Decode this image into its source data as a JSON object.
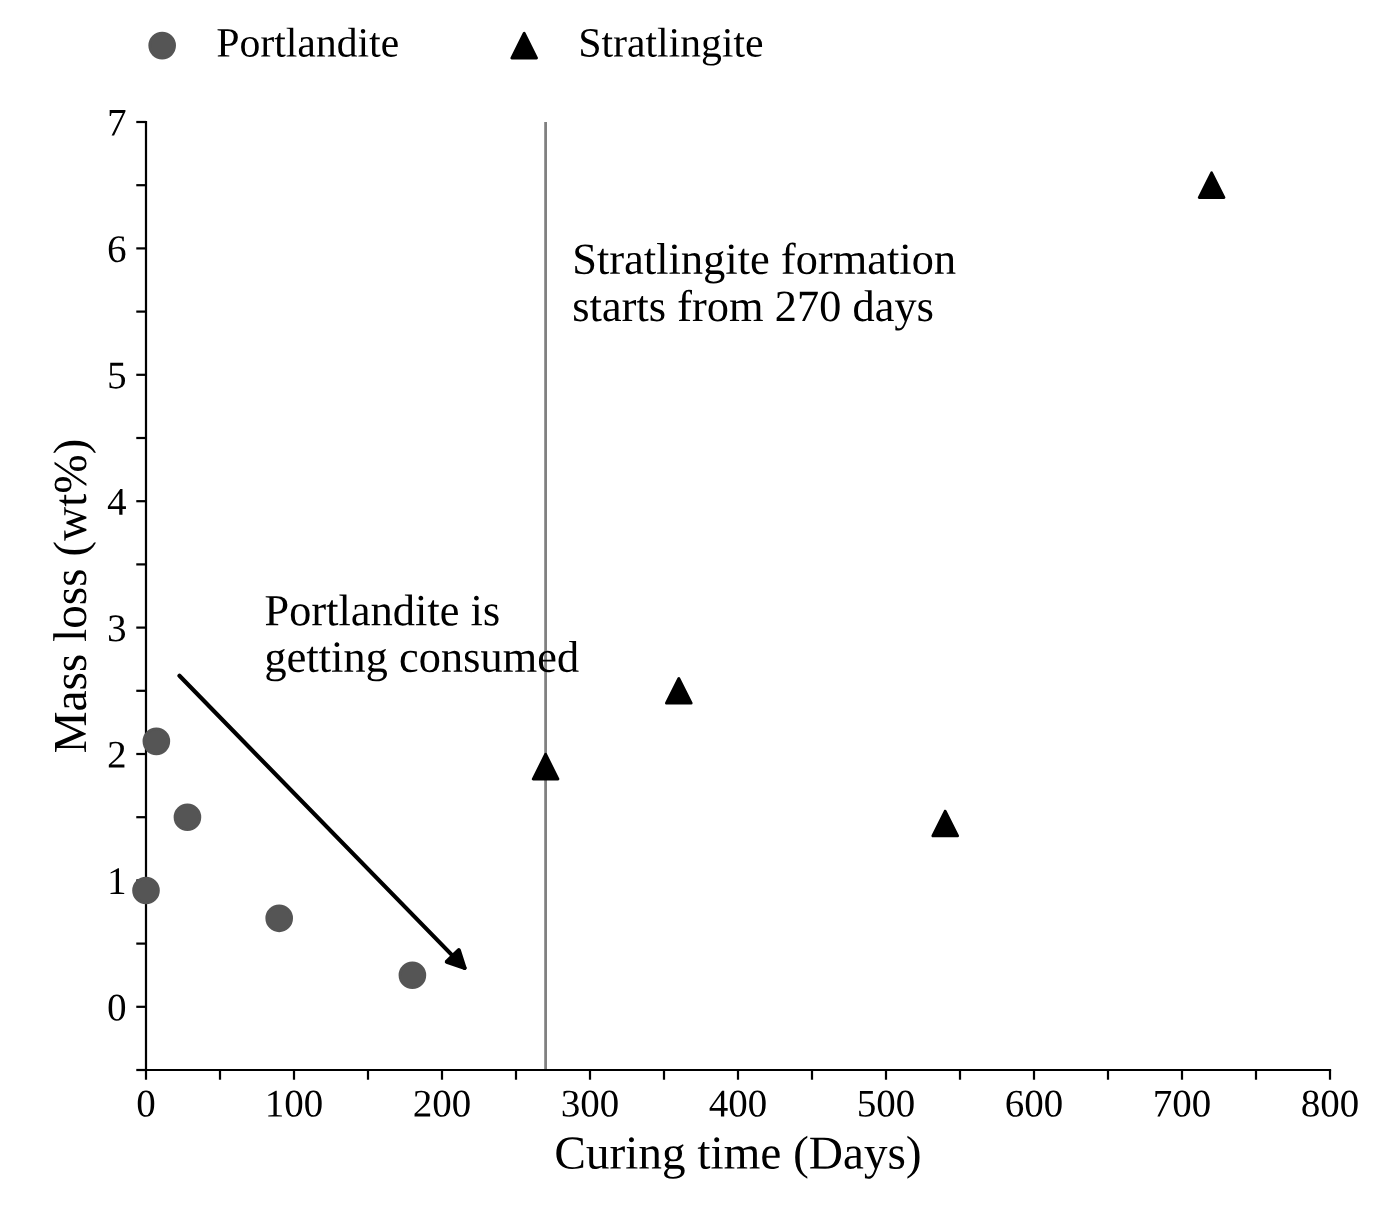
{
  "chart_data": {
    "type": "scatter",
    "xlabel": "Curing time (Days)",
    "ylabel": "Mass loss (wt%)",
    "series": [
      {
        "name": "Portlandite",
        "color": "#555555",
        "marker": "circle",
        "x": [
          0,
          7,
          28,
          90,
          180
        ],
        "values": [
          0.92,
          2.1,
          1.5,
          0.7,
          0.25
        ]
      },
      {
        "name": "Stratlingite",
        "color": "#000000",
        "marker": "triangle",
        "x": [
          270,
          360,
          540,
          720
        ],
        "values": [
          1.9,
          2.5,
          1.45,
          6.5
        ]
      }
    ],
    "xlim": [
      0,
      800
    ],
    "ylim": [
      -0.5,
      7
    ],
    "xticks": [
      0,
      {
        "value": 50,
        "label": null
      },
      100,
      {
        "value": 150,
        "label": null
      },
      200,
      {
        "value": 250,
        "label": null
      },
      300,
      {
        "value": 350,
        "label": null
      },
      400,
      {
        "value": 450,
        "label": null
      },
      500,
      {
        "value": 550,
        "label": null
      },
      600,
      {
        "value": 650,
        "label": null
      },
      700,
      {
        "value": 750,
        "label": null
      },
      800
    ],
    "yticks": [
      {
        "value": -0.5,
        "label": null
      },
      0,
      {
        "value": 0.5,
        "label": null
      },
      1,
      {
        "value": 1.5,
        "label": null
      },
      2,
      {
        "value": 2.5,
        "label": null
      },
      3,
      {
        "value": 3.5,
        "label": null
      },
      4,
      {
        "value": 4.5,
        "label": null
      },
      5,
      {
        "value": 5.5,
        "label": null
      },
      6,
      {
        "value": 6.5,
        "label": null
      },
      7
    ],
    "ref_lines": [
      {
        "axis": "x",
        "value": 270,
        "color": "#808080",
        "line_style": "solid"
      }
    ],
    "annotations": [
      "Portlandite is\ngetting consumed",
      "Stratlingite formation\nstarts from 270 days"
    ],
    "legend": "top",
    "grid": false
  }
}
